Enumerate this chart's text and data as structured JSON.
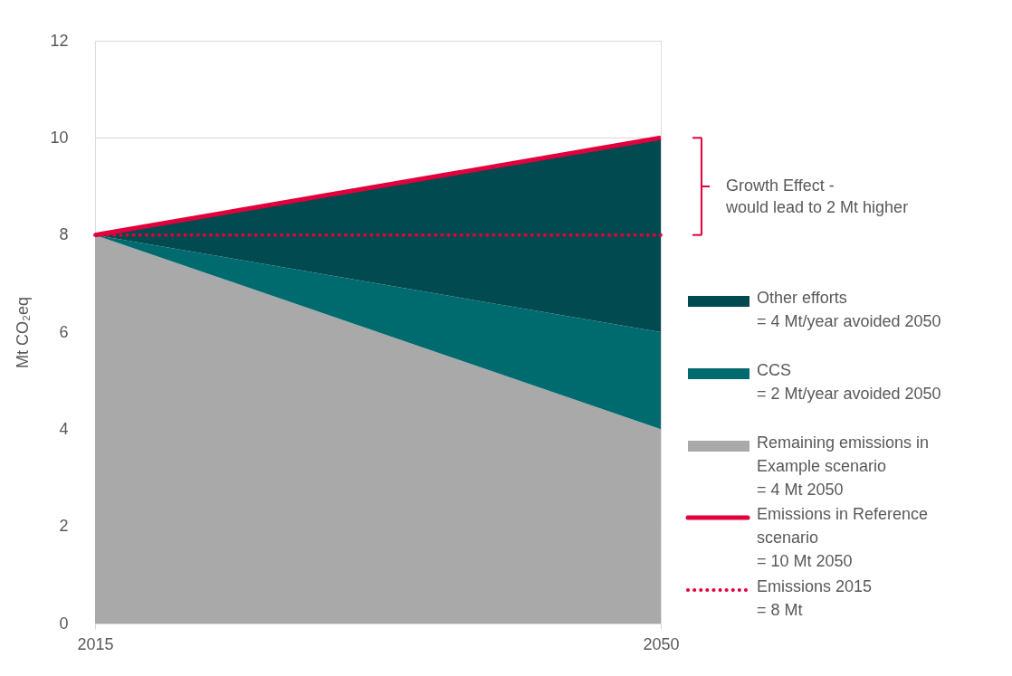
{
  "chart_data": {
    "type": "area",
    "stacked": true,
    "x": [
      2015,
      2050
    ],
    "xlim": [
      2015,
      2050
    ],
    "xticks": [
      2015,
      2050
    ],
    "ylim": [
      0,
      12
    ],
    "yticks": [
      0,
      2,
      4,
      6,
      8,
      10,
      12
    ],
    "ylabel": "Mt CO₂eq",
    "grid": "y",
    "legend": "right",
    "series": [
      {
        "name": "Remaining emissions in\nExample scenario\n= 4 Mt 2050",
        "color": "#a9a9a9",
        "values": [
          8,
          4
        ]
      },
      {
        "name": "CCS\n= 2 Mt/year avoided 2050",
        "color": "#006b6f",
        "values": [
          0,
          2
        ]
      },
      {
        "name": "Other efforts\n= 4 Mt/year avoided 2050",
        "color": "#004a50",
        "values": [
          0,
          4
        ]
      },
      {
        "name": "Emissions in Reference\nscenario\n= 10 Mt 2050",
        "type": "line",
        "color": "#e2003c",
        "line_style": "solid",
        "values": [
          8,
          10
        ]
      },
      {
        "name": "Emissions 2015\n= 8 Mt",
        "type": "line",
        "color": "#e2003c",
        "line_style": "dotted",
        "values": [
          8,
          8
        ]
      }
    ],
    "annotations": [
      "Growth Effect -\nwould lead to 2 Mt higher"
    ]
  }
}
